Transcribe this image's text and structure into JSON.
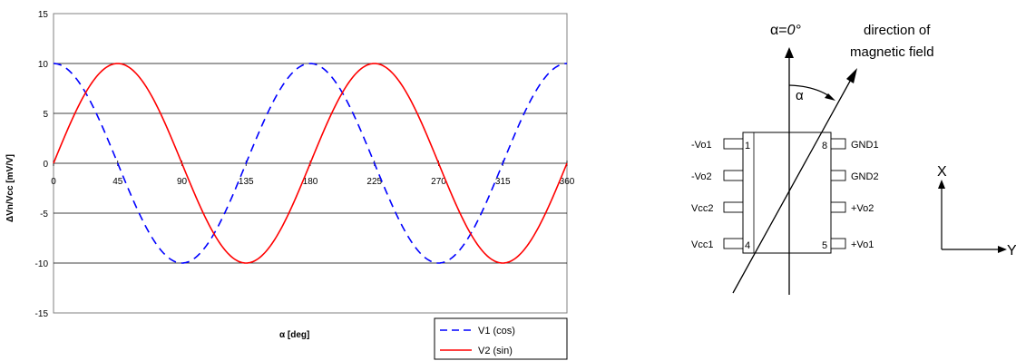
{
  "chart_data": {
    "type": "line",
    "xlabel": "α [deg]",
    "ylabel": "ΔVn/Vcc [mV/V]",
    "xlim": [
      0,
      360
    ],
    "ylim": [
      -15,
      15
    ],
    "x_ticks": [
      "0",
      "45",
      "90",
      "135",
      "180",
      "225",
      "270",
      "315",
      "360"
    ],
    "y_ticks": [
      "15",
      "10",
      "5",
      "0",
      "-5",
      "-10",
      "-15"
    ],
    "grid": "horizontal",
    "legend_position": "bottom-right",
    "series": [
      {
        "name": "V1 (cos)",
        "color": "#0000ff",
        "style": "dashed",
        "amplitude": 10,
        "function": "cos(2α)",
        "x": [
          0,
          45,
          90,
          135,
          180,
          225,
          270,
          315,
          360
        ],
        "values": [
          10,
          0,
          -10,
          0,
          10,
          0,
          -10,
          0,
          10
        ]
      },
      {
        "name": "V2 (sin)",
        "color": "#ff0000",
        "style": "solid",
        "amplitude": 10,
        "function": "sin(2α)",
        "x": [
          0,
          45,
          90,
          135,
          180,
          225,
          270,
          315,
          360
        ],
        "values": [
          0,
          10,
          0,
          -10,
          0,
          10,
          0,
          -10,
          0
        ]
      }
    ]
  },
  "diagram": {
    "alpha_label_prefix": "α=",
    "alpha_label_value": "0°",
    "field_label_line1": "direction of",
    "field_label_line2": "magnetic field",
    "angle_label": "α",
    "pins_left": [
      {
        "label": "-Vo1",
        "num": "1"
      },
      {
        "label": "-Vo2",
        "num": ""
      },
      {
        "label": "Vcc2",
        "num": ""
      },
      {
        "label": "Vcc1",
        "num": "4"
      }
    ],
    "pins_right": [
      {
        "label": "GND1",
        "num": "8"
      },
      {
        "label": "GND2",
        "num": ""
      },
      {
        "label": "+Vo2",
        "num": ""
      },
      {
        "label": "+Vo1",
        "num": "5"
      }
    ],
    "axis_x_label": "X",
    "axis_y_label": "Y"
  }
}
